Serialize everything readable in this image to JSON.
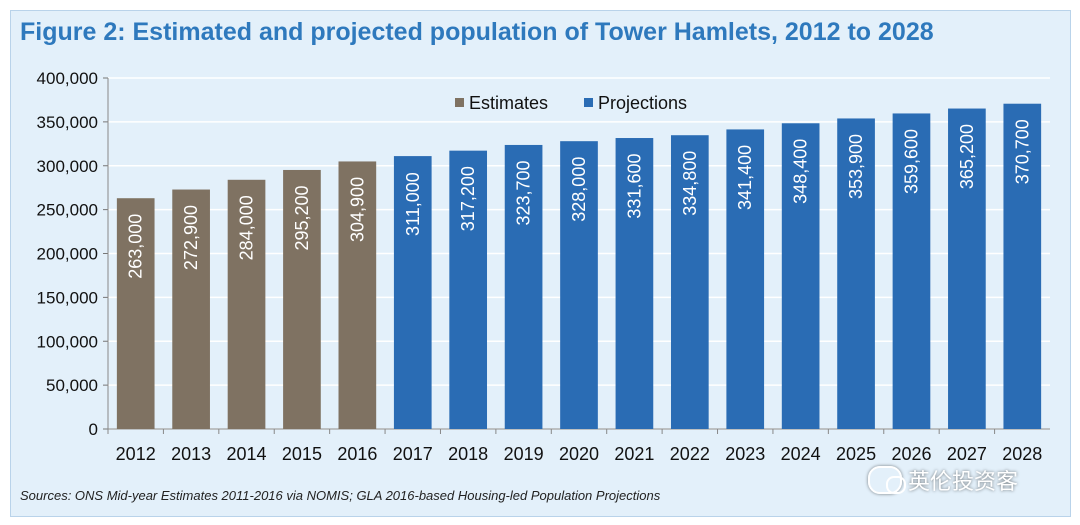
{
  "figure": {
    "title": "Figure 2: Estimated and projected population of Tower Hamlets, 2012 to 2028",
    "source": "Sources: ONS Mid-year Estimates 2011-2016 via NOMIS; GLA 2016-based Housing-led Population Projections",
    "watermark": "英伦投资客",
    "watermark_icon": "wechat-icon"
  },
  "colors": {
    "estimates": "#7f7262",
    "projections": "#2a6cb4",
    "background": "#e3f0fa",
    "title": "#2e79bd"
  },
  "chart_data": {
    "type": "bar",
    "title": "Figure 2: Estimated and projected population of Tower Hamlets, 2012 to 2028",
    "categories": [
      "2012",
      "2013",
      "2014",
      "2015",
      "2016",
      "2017",
      "2018",
      "2019",
      "2020",
      "2021",
      "2022",
      "2023",
      "2024",
      "2025",
      "2026",
      "2027",
      "2028"
    ],
    "series": [
      {
        "name": "Estimates",
        "values": [
          263000,
          272900,
          284000,
          295200,
          304900,
          null,
          null,
          null,
          null,
          null,
          null,
          null,
          null,
          null,
          null,
          null,
          null
        ]
      },
      {
        "name": "Projections",
        "values": [
          null,
          null,
          null,
          null,
          null,
          311000,
          317200,
          323700,
          328000,
          331600,
          334800,
          341400,
          348400,
          353900,
          359600,
          365200,
          370700
        ]
      }
    ],
    "data_labels": [
      "263,000",
      "272,900",
      "284,000",
      "295,200",
      "304,900",
      "311,000",
      "317,200",
      "323,700",
      "328,000",
      "331,600",
      "334,800",
      "341,400",
      "348,400",
      "353,900",
      "359,600",
      "365,200",
      "370,700"
    ],
    "y_ticks": [
      0,
      50000,
      100000,
      150000,
      200000,
      250000,
      300000,
      350000,
      400000
    ],
    "y_tick_labels": [
      "0",
      "50,000",
      "100,000",
      "150,000",
      "200,000",
      "250,000",
      "300,000",
      "350,000",
      "400,000"
    ],
    "ylim": [
      0,
      400000
    ],
    "xlabel": "",
    "ylabel": "",
    "grid": true,
    "legend_position": "top-center"
  }
}
